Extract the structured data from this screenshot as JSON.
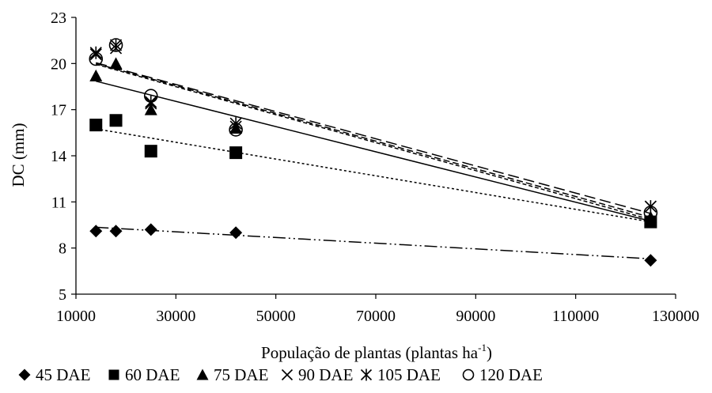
{
  "chart_data": {
    "type": "scatter",
    "title": "",
    "xlabel": "População de plantas (plantas ha",
    "xlabel_sup": "-1",
    "xlabel_close": ")",
    "ylabel": "DC (mm)",
    "xlim": [
      10000,
      130000
    ],
    "ylim": [
      5,
      23
    ],
    "xticks": [
      10000,
      30000,
      50000,
      70000,
      90000,
      110000,
      130000
    ],
    "xtick_labels": [
      "10000",
      "30000",
      "50000",
      "70000",
      "90000",
      "110000",
      "130000"
    ],
    "yticks": [
      5,
      8,
      11,
      14,
      17,
      20,
      23
    ],
    "ytick_labels": [
      "5",
      "8",
      "11",
      "14",
      "17",
      "20",
      "23"
    ],
    "grid": false,
    "legend_position": "bottom",
    "x": [
      14000,
      18000,
      25000,
      42000,
      125000
    ],
    "series": [
      {
        "name": "45 DAE",
        "marker": "diamond",
        "line": "dashdotdot",
        "values": [
          9.1,
          9.1,
          9.2,
          9.0,
          7.2
        ],
        "trend": [
          9.35,
          7.3
        ]
      },
      {
        "name": "60 DAE",
        "marker": "square",
        "line": "dotted",
        "values": [
          16.0,
          16.3,
          14.3,
          14.2,
          9.7
        ],
        "trend": [
          15.75,
          9.7
        ]
      },
      {
        "name": "75 DAE",
        "marker": "triangle",
        "line": "solid",
        "values": [
          19.2,
          20.0,
          17.0,
          15.8,
          10.0
        ],
        "trend": [
          18.85,
          9.75
        ]
      },
      {
        "name": "90 DAE",
        "marker": "x",
        "line": "longdash",
        "values": [
          20.6,
          21.0,
          17.4,
          15.9,
          10.7
        ],
        "trend": [
          20.05,
          10.25
        ]
      },
      {
        "name": "105 DAE",
        "marker": "asterisk",
        "line": "dashed",
        "values": [
          20.7,
          21.2,
          17.5,
          16.1,
          10.7
        ],
        "trend": [
          20.0,
          10.0
        ]
      },
      {
        "name": "120 DAE",
        "marker": "circle",
        "line": "shortdash",
        "values": [
          20.3,
          21.2,
          17.9,
          15.7,
          10.3
        ],
        "trend": [
          19.95,
          9.85
        ]
      }
    ]
  }
}
